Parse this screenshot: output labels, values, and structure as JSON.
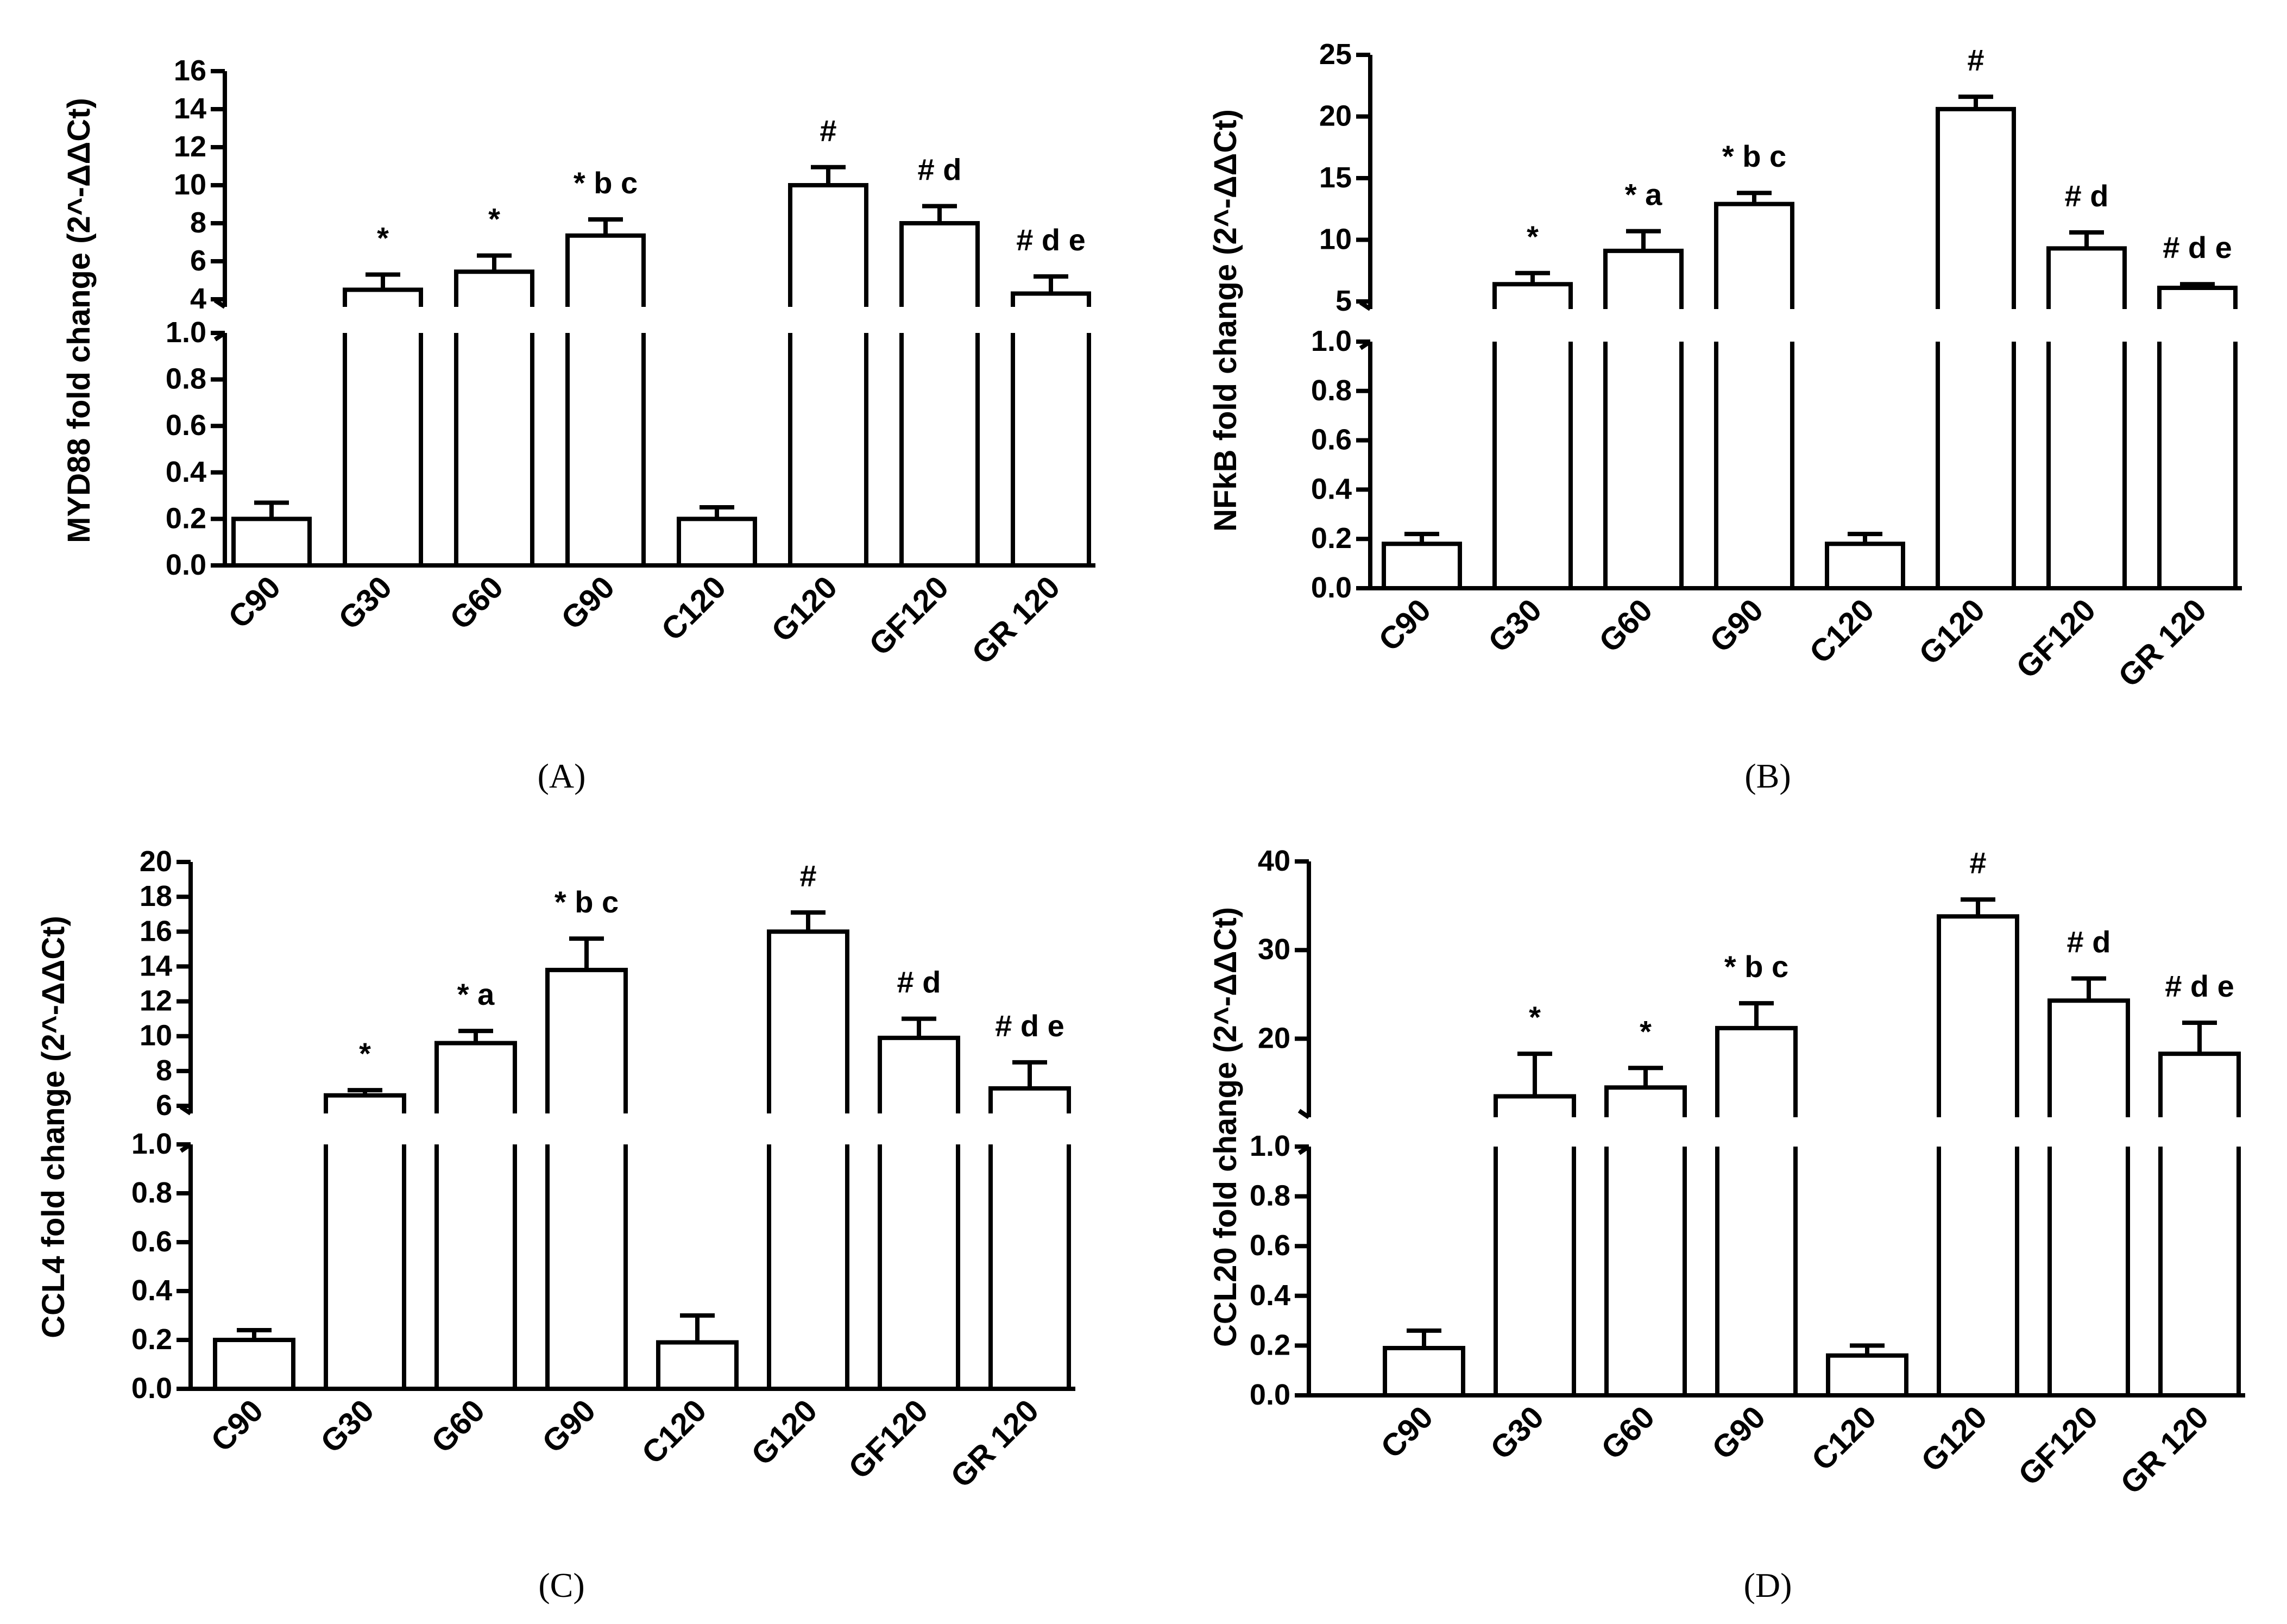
{
  "figure": {
    "background": "#ffffff",
    "ink": "#000000"
  },
  "chart_data": [
    {
      "panel": "A",
      "panel_label": "(A)",
      "type": "bar",
      "broken_axis": true,
      "ylabel": "MYD88 fold change  (2^-ΔΔCt)",
      "categories": [
        "C90",
        "G30",
        "G60",
        "G90",
        "C120",
        "G120",
        "GF120",
        "GR 120"
      ],
      "values": [
        0.2,
        4.5,
        5.45,
        7.35,
        0.2,
        10.0,
        8.0,
        4.3
      ],
      "errors": [
        0.07,
        0.8,
        0.85,
        0.85,
        0.05,
        0.95,
        0.9,
        0.9
      ],
      "annotations": [
        "",
        "*",
        "*",
        "* b c",
        "",
        "#",
        "# d",
        "# d e"
      ],
      "lower_axis": {
        "range": [
          0.0,
          1.0
        ],
        "ticks": [
          "0.0",
          "0.2",
          "0.4",
          "0.6",
          "0.8",
          "1.0"
        ]
      },
      "upper_axis": {
        "range": [
          4,
          16
        ],
        "ticks": [
          "4",
          "6",
          "8",
          "10",
          "12",
          "14",
          "16"
        ]
      }
    },
    {
      "panel": "B",
      "panel_label": "(B)",
      "type": "bar",
      "broken_axis": true,
      "ylabel": "NFkB fold change (2^-ΔΔCt)",
      "categories": [
        "C90",
        "G30",
        "G60",
        "G90",
        "C120",
        "G120",
        "GF120",
        "GR 120"
      ],
      "values": [
        0.18,
        6.4,
        9.1,
        12.9,
        0.18,
        20.6,
        9.3,
        6.1
      ],
      "errors": [
        0.04,
        0.9,
        1.6,
        0.9,
        0.04,
        1.0,
        1.3,
        0.3
      ],
      "annotations": [
        "",
        "*",
        "* a",
        "*  b c",
        "",
        "#",
        "# d",
        "# d e"
      ],
      "lower_axis": {
        "range": [
          0.0,
          1.0
        ],
        "ticks": [
          "0.0",
          "0.2",
          "0.4",
          "0.6",
          "0.8",
          "1.0"
        ]
      },
      "upper_axis": {
        "range": [
          5,
          25
        ],
        "ticks": [
          "5",
          "10",
          "15",
          "20",
          "25"
        ]
      }
    },
    {
      "panel": "C",
      "panel_label": "(C)",
      "type": "bar",
      "broken_axis": true,
      "ylabel": "CCL4 fold change (2^-ΔΔCt)",
      "categories": [
        "C90",
        "G30",
        "G60",
        "G90",
        "C120",
        "G120",
        "GF120",
        "GR 120"
      ],
      "values": [
        0.2,
        6.6,
        9.6,
        13.8,
        0.19,
        16.0,
        9.9,
        7.0
      ],
      "errors": [
        0.04,
        0.3,
        0.7,
        1.8,
        0.11,
        1.1,
        1.1,
        1.5
      ],
      "annotations": [
        "",
        "*",
        "* a",
        "* b c",
        "",
        "#",
        "# d",
        "#  d e"
      ],
      "lower_axis": {
        "range": [
          0.0,
          1.0
        ],
        "ticks": [
          "0.0",
          "0.2",
          "0.4",
          "0.6",
          "0.8",
          "1.0"
        ]
      },
      "upper_axis": {
        "range": [
          6,
          20
        ],
        "ticks": [
          "6",
          "8",
          "10",
          "12",
          "14",
          "16",
          "18",
          "20"
        ]
      }
    },
    {
      "panel": "D",
      "panel_label": "(D)",
      "type": "bar",
      "broken_axis": true,
      "ylabel": "CCL20 fold change (2^-ΔΔCt)",
      "categories": [
        "C90",
        "G30",
        "G60",
        "G90",
        "C120",
        "G120",
        "GF120",
        "GR 120"
      ],
      "values": [
        0.19,
        13.5,
        14.5,
        21.2,
        0.16,
        33.8,
        24.3,
        18.3
      ],
      "errors": [
        0.07,
        4.8,
        2.2,
        2.8,
        0.04,
        1.9,
        2.5,
        3.5
      ],
      "annotations": [
        "",
        "*",
        "*",
        "* b c",
        "",
        "#",
        "# d",
        "# d e"
      ],
      "lower_axis": {
        "range": [
          0.0,
          1.0
        ],
        "ticks": [
          "0.0",
          "0.2",
          "0.4",
          "0.6",
          "0.8",
          "1.0"
        ]
      },
      "upper_axis": {
        "range": [
          12,
          40
        ],
        "ticks": [
          "20",
          "30",
          "40"
        ],
        "tick_values": [
          20,
          30,
          40
        ]
      }
    }
  ]
}
